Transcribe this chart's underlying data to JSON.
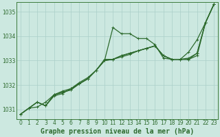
{
  "background_color": "#cce8e0",
  "grid_color": "#aacfc8",
  "line_color": "#2d6a2d",
  "spine_color": "#3a7a3a",
  "title": "Graphe pression niveau de la mer (hPa)",
  "xlim": [
    -0.5,
    23.5
  ],
  "ylim": [
    1030.6,
    1035.4
  ],
  "yticks": [
    1031,
    1032,
    1033,
    1034,
    1035
  ],
  "xticks": [
    0,
    1,
    2,
    3,
    4,
    5,
    6,
    7,
    8,
    9,
    10,
    11,
    12,
    13,
    14,
    15,
    16,
    17,
    18,
    19,
    20,
    21,
    22,
    23
  ],
  "lines": [
    [
      1030.8,
      1031.05,
      1031.1,
      1031.3,
      1031.6,
      1031.75,
      1031.85,
      1032.05,
      1032.25,
      1032.6,
      1033.0,
      1034.35,
      1034.1,
      1034.1,
      1033.9,
      1033.9,
      1033.65,
      1033.1,
      1033.05,
      1033.05,
      1033.35,
      1033.85,
      1034.55,
      1035.3
    ],
    [
      1030.8,
      1031.05,
      1031.3,
      1031.15,
      1031.6,
      1031.7,
      1031.8,
      1032.05,
      1032.25,
      1032.6,
      1033.0,
      1033.05,
      1033.2,
      1033.3,
      1033.4,
      1033.5,
      1033.6,
      1033.2,
      1033.05,
      1033.05,
      1033.1,
      1033.3,
      1034.55,
      1035.3
    ],
    [
      1030.8,
      1031.05,
      1031.3,
      1031.15,
      1031.6,
      1031.7,
      1031.8,
      1032.05,
      1032.25,
      1032.6,
      1033.0,
      1033.05,
      1033.2,
      1033.3,
      1033.4,
      1033.5,
      1033.6,
      1033.2,
      1033.05,
      1033.05,
      1033.05,
      1033.3,
      1034.55,
      1035.3
    ],
    [
      1030.8,
      1031.05,
      1031.3,
      1031.15,
      1031.55,
      1031.65,
      1031.85,
      1032.1,
      1032.3,
      1032.6,
      1033.05,
      1033.05,
      1033.15,
      1033.25,
      1033.4,
      1033.5,
      1033.6,
      1033.2,
      1033.05,
      1033.05,
      1033.05,
      1033.2,
      1034.55,
      1035.3
    ]
  ],
  "marker": "+",
  "markersize": 3,
  "linewidth": 0.9,
  "title_fontsize": 7,
  "tick_fontsize": 5.5
}
